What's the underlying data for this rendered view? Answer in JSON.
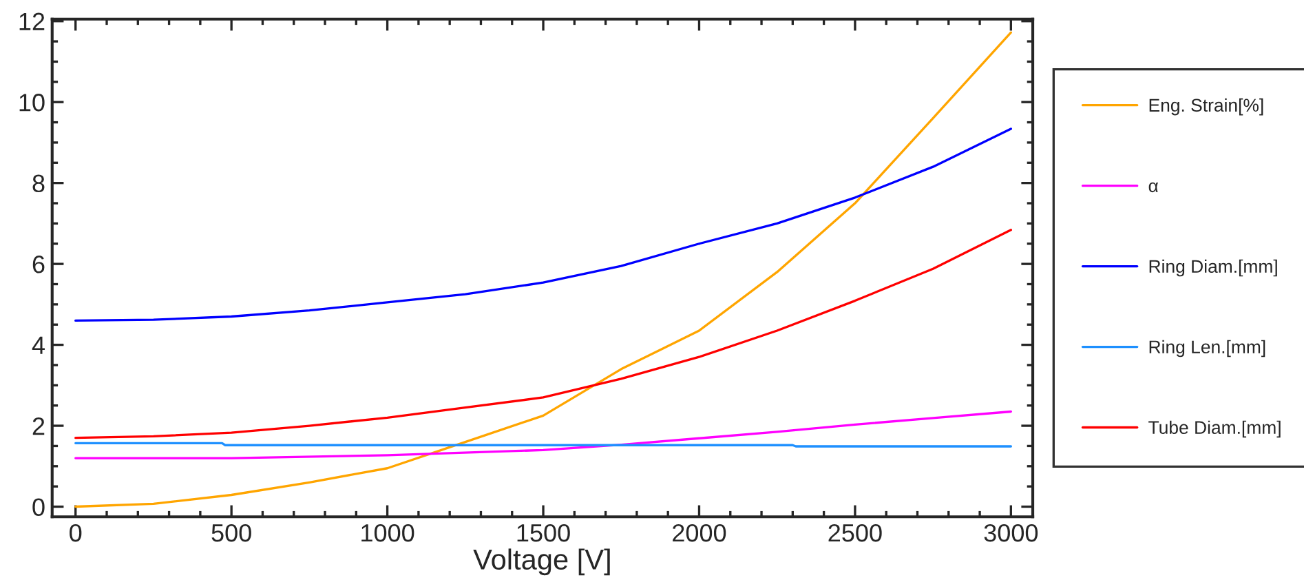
{
  "chart_data": {
    "type": "line",
    "xlabel": "Voltage [V]",
    "xlim": [
      -75,
      3070
    ],
    "ylim": [
      -0.25,
      12.05
    ],
    "xticks": [
      0,
      500,
      1000,
      1500,
      2000,
      2500,
      3000
    ],
    "yticks": [
      0,
      2,
      4,
      6,
      8,
      10,
      12
    ],
    "grid": false,
    "legend": "right",
    "marker": "none",
    "line_style": "solid",
    "series": [
      {
        "name": "Eng. Strain[%]",
        "color": "#ffa500",
        "x": [
          0,
          250,
          500,
          750,
          1000,
          1250,
          1500,
          1750,
          2000,
          2250,
          2500,
          2750,
          3000
        ],
        "values": [
          0,
          0.07,
          0.29,
          0.6,
          0.95,
          1.6,
          2.25,
          3.4,
          4.35,
          5.8,
          7.5,
          9.6,
          11.72
        ]
      },
      {
        "name": "α",
        "color": "#ff00ff",
        "x": [
          0,
          500,
          1000,
          1500,
          1750,
          2000,
          2250,
          2500,
          2750,
          3000
        ],
        "values": [
          1.2,
          1.2,
          1.27,
          1.4,
          1.53,
          1.69,
          1.85,
          2.03,
          2.19,
          2.35
        ]
      },
      {
        "name": "Ring Diam.[mm]",
        "color": "#0000ff",
        "x": [
          0,
          250,
          500,
          750,
          1000,
          1250,
          1500,
          1750,
          2000,
          2250,
          2500,
          2750,
          3000
        ],
        "values": [
          4.6,
          4.62,
          4.7,
          4.85,
          5.05,
          5.25,
          5.54,
          5.95,
          6.5,
          7.0,
          7.64,
          8.4,
          9.34
        ]
      },
      {
        "name": "Ring Len.[mm]",
        "color": "#1e90ff",
        "x": [
          0,
          470,
          480,
          2300,
          2310,
          3000
        ],
        "values": [
          1.57,
          1.57,
          1.52,
          1.52,
          1.49,
          1.49
        ]
      },
      {
        "name": "Tube Diam.[mm]",
        "color": "#ff0000",
        "x": [
          0,
          250,
          500,
          750,
          1000,
          1250,
          1500,
          1750,
          2000,
          2250,
          2500,
          2750,
          3000
        ],
        "values": [
          1.7,
          1.74,
          1.83,
          2.0,
          2.2,
          2.45,
          2.7,
          3.16,
          3.7,
          4.35,
          5.09,
          5.88,
          6.84
        ]
      }
    ]
  }
}
